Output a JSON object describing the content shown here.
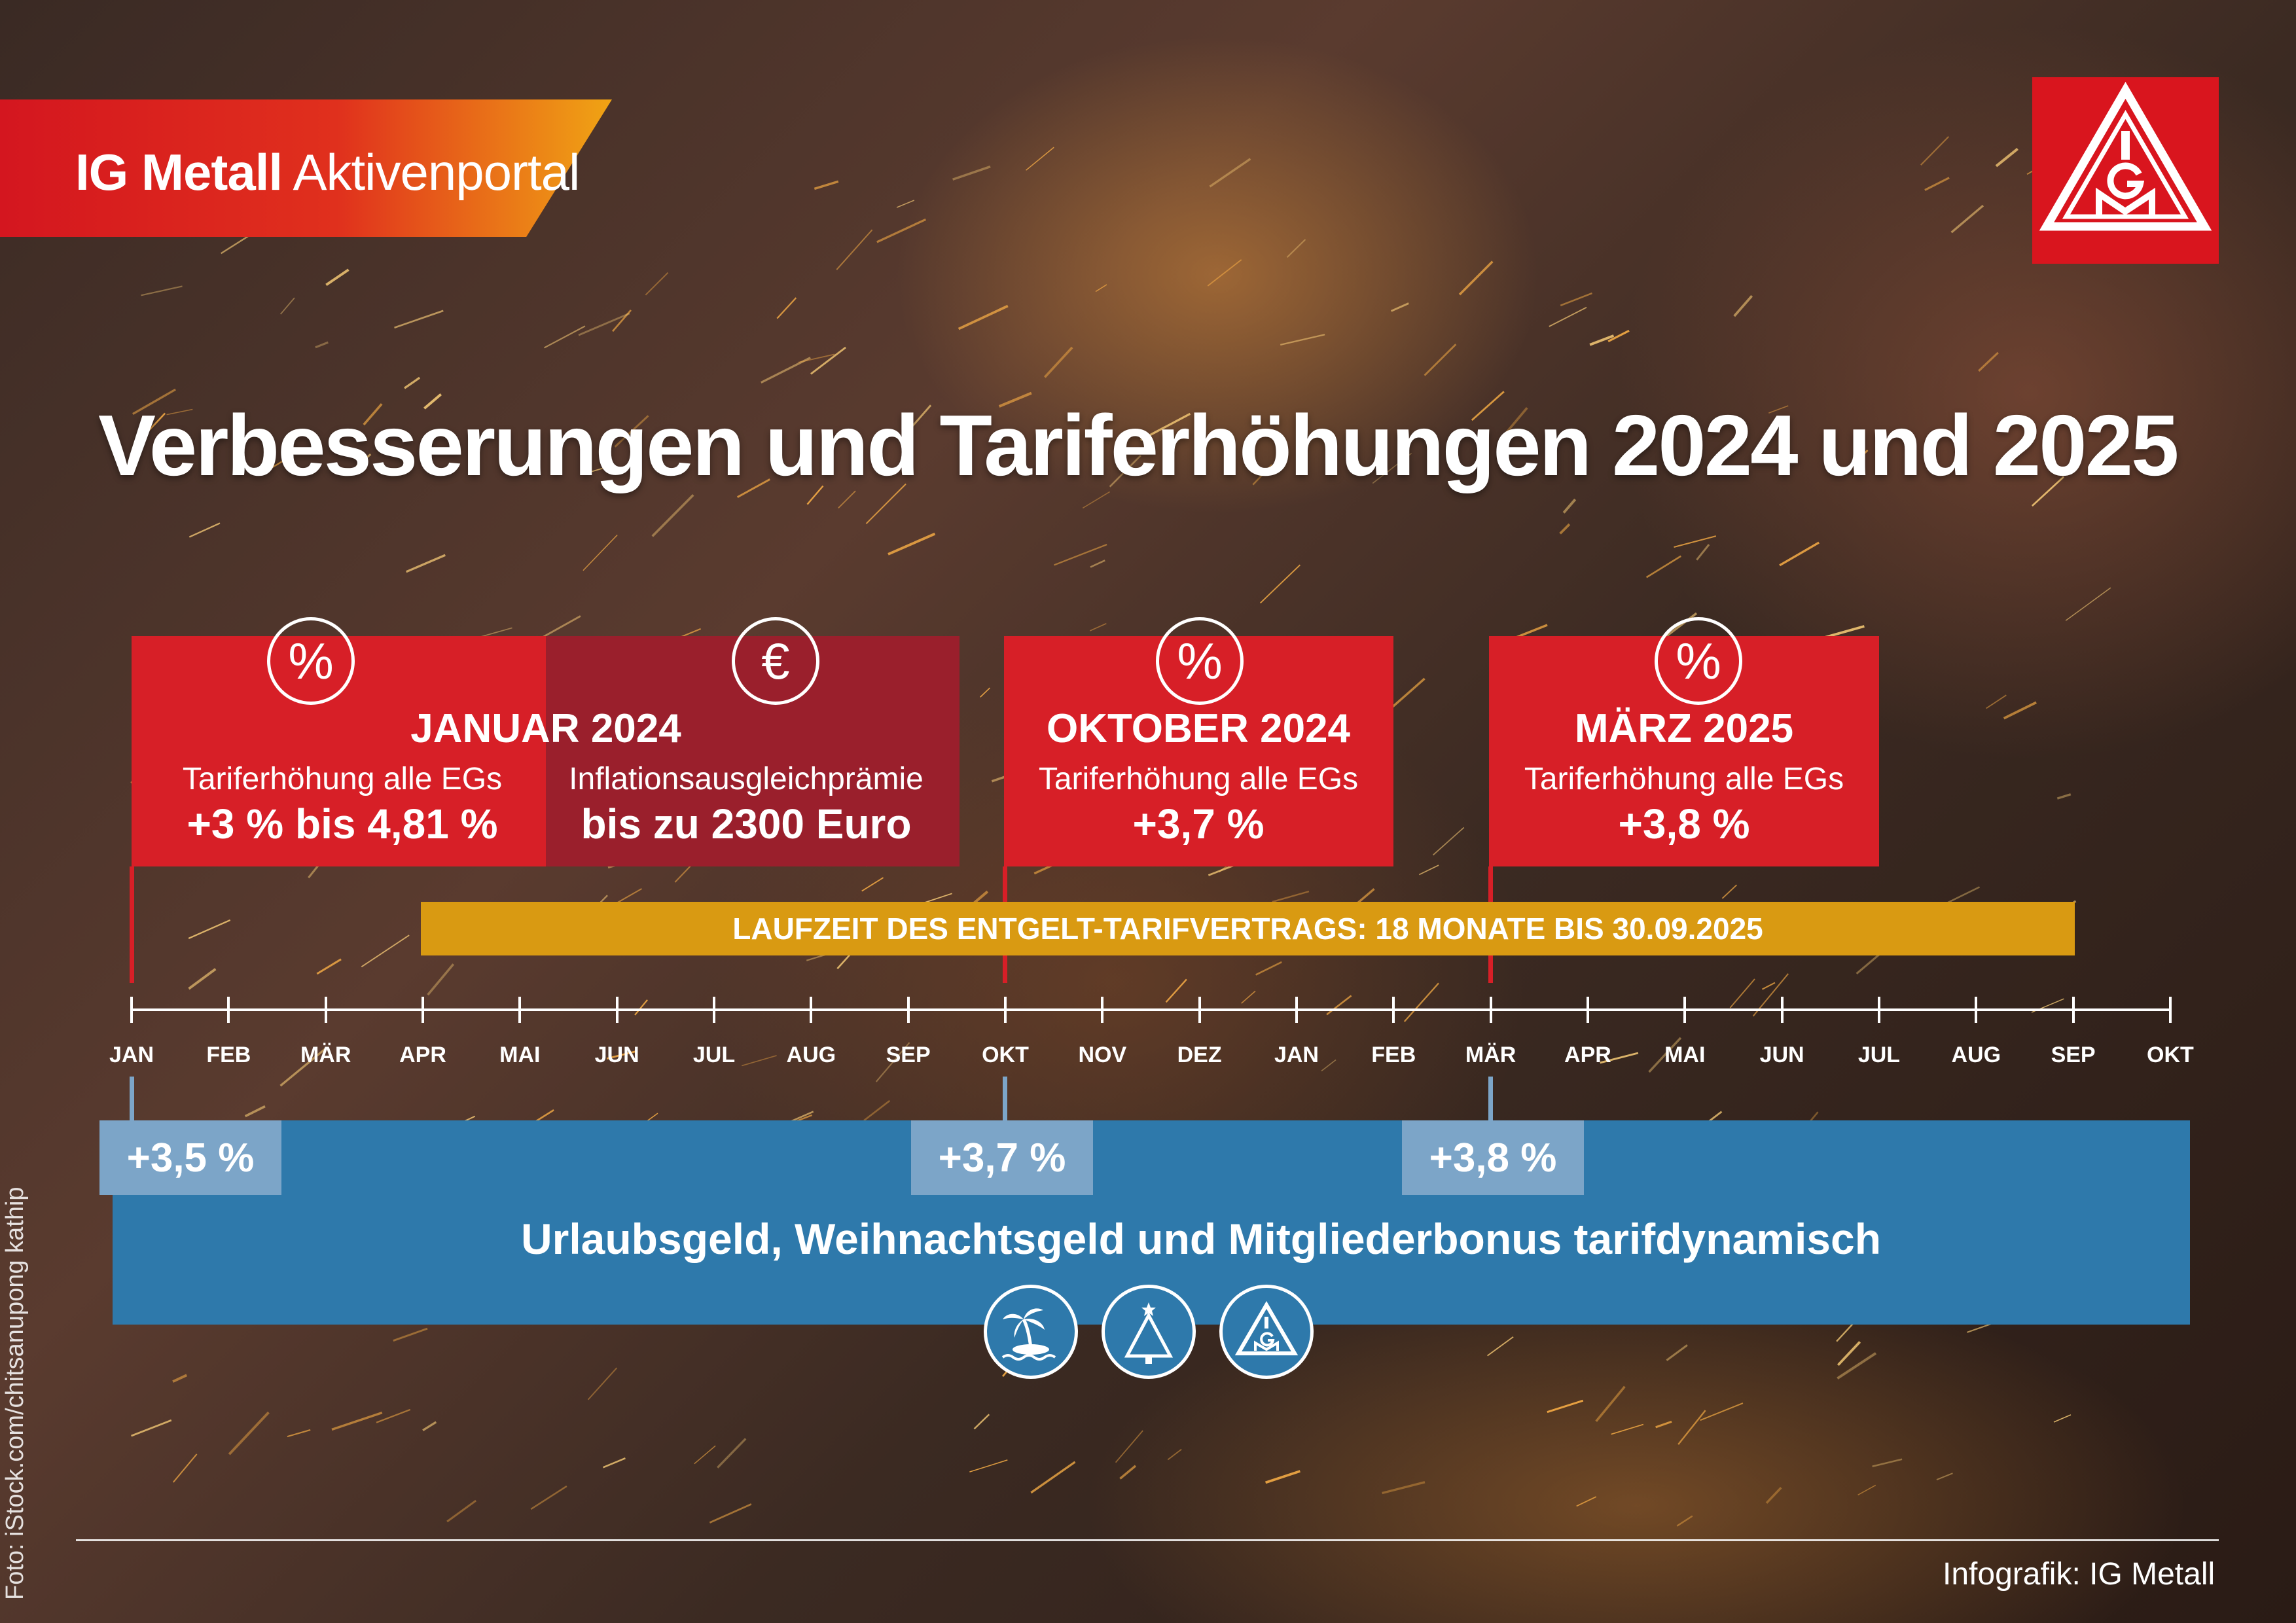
{
  "header": {
    "brand_bold": "IG Metall",
    "brand_light": "Aktivenportal",
    "logo": "ig-metall-logo"
  },
  "title": "Verbesserungen und Tariferhöhungen 2024 und 2025",
  "cards": [
    {
      "title": "JANUAR 2024",
      "items": [
        {
          "icon": "percent-icon",
          "subtitle": "Tariferhöhung alle EGs",
          "value": "+3 % bis 4,81 %"
        },
        {
          "icon": "euro-icon",
          "subtitle": "Inflationsausgleichprämie",
          "value": "bis zu 2300 Euro"
        }
      ]
    },
    {
      "title": "OKTOBER 2024",
      "icon": "percent-icon",
      "subtitle": "Tariferhöhung alle EGs",
      "value": "+3,7 %"
    },
    {
      "title": "MÄRZ 2025",
      "icon": "percent-icon",
      "subtitle": "Tariferhöhung alle EGs",
      "value": "+3,8 %"
    }
  ],
  "laufzeit": "LAUFZEIT DES ENTGELT-TARIFVERTRAGS: 18 MONATE BIS 30.09.2025",
  "timeline": {
    "months": [
      "JAN",
      "FEB",
      "MÄR",
      "APR",
      "MAI",
      "JUN",
      "JUL",
      "AUG",
      "SEP",
      "OKT",
      "NOV",
      "DEZ",
      "JAN",
      "FEB",
      "MÄR",
      "APR",
      "MAI",
      "JUN",
      "JUL",
      "AUG",
      "SEP",
      "OKT"
    ]
  },
  "bonus": {
    "chips": [
      "+3,5 %",
      "+3,7 %",
      "+3,8 %"
    ],
    "text": "Urlaubsgeld, Weihnachtsgeld und Mitgliederbonus tarifdynamisch",
    "icons": [
      "island-palm-icon",
      "christmas-tree-icon",
      "ig-metall-logo-icon"
    ]
  },
  "colors": {
    "red": "#d71f27",
    "dark_red": "#9a1f2c",
    "gold": "#d99a12",
    "blue": "#2e79ab",
    "light_blue": "#7ca5c8"
  },
  "footer": {
    "credit": "Infografik: IG Metall",
    "photo_credit": "Foto: iStock.com/chitsanupong kathip"
  }
}
